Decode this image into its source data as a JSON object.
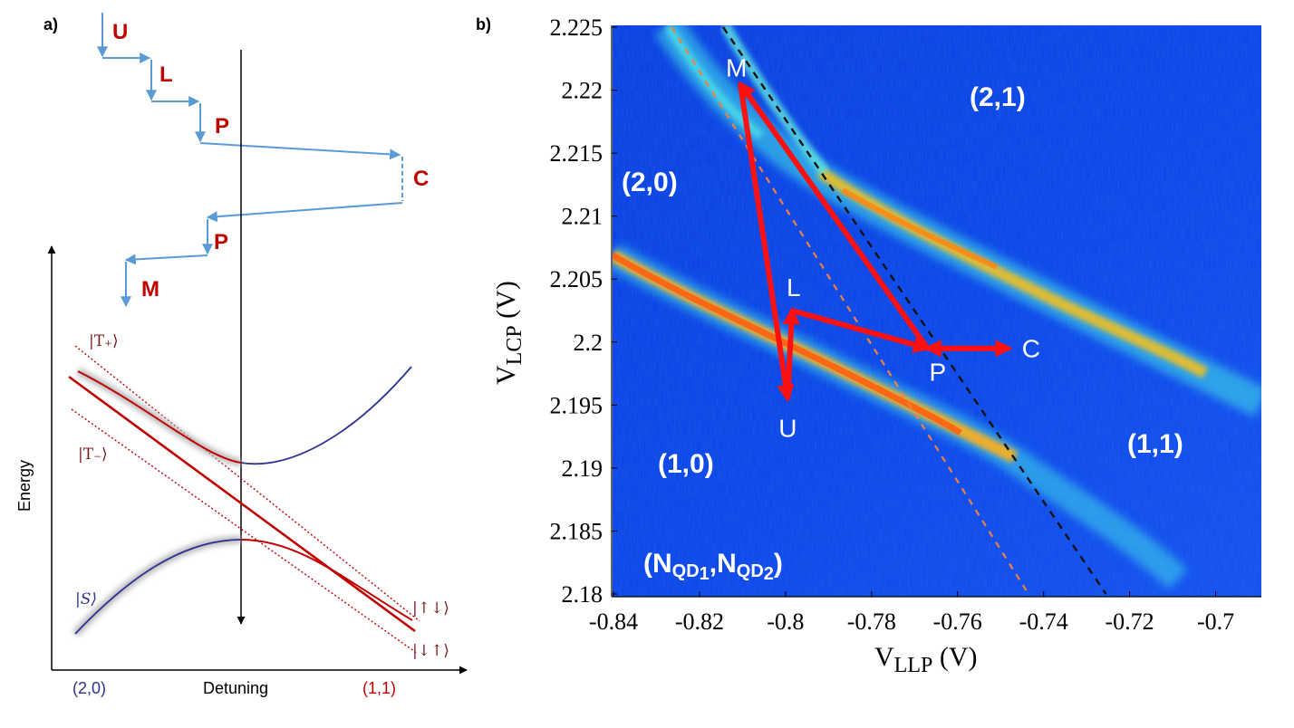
{
  "panel_a": {
    "label": "a)",
    "sequence": [
      "U",
      "L",
      "P",
      "C",
      "P",
      "M"
    ],
    "y_axis_label": "Energy",
    "x_axis_label": "Detuning",
    "x_left": "(2,0)",
    "x_right": "(1,1)",
    "states": {
      "t_plus": "|T₊⟩",
      "t_minus": "|T₋⟩",
      "singlet": "|S⟩",
      "up_down": "|↑↓⟩",
      "down_up": "|↓↑⟩"
    },
    "colors": {
      "sequence": "#5b9bd5",
      "labels": "#c00000",
      "triplet": "#c00000",
      "singlet": "#2e3192"
    }
  },
  "panel_b": {
    "label": "b)",
    "regions": {
      "r21": "(2,1)",
      "r20": "(2,0)",
      "r10": "(1,0)",
      "r11": "(1,1)"
    },
    "occupation": {
      "open": "(N",
      "qd": "QD",
      "sub1": "1",
      "comma": ",N",
      "sub2": "2",
      "close": ")"
    },
    "points": [
      {
        "name": "M",
        "x": -0.8105,
        "y": 2.2205
      },
      {
        "name": "L",
        "x": -0.7985,
        "y": 2.2025
      },
      {
        "name": "U",
        "x": -0.7995,
        "y": 2.1955
      },
      {
        "name": "P",
        "x": -0.767,
        "y": 2.1995
      },
      {
        "name": "C",
        "x": -0.748,
        "y": 2.1995
      }
    ],
    "chart_data": {
      "type": "heatmap",
      "xlabel": {
        "main": "V",
        "sub": "LLP",
        "unit": " (V)"
      },
      "ylabel": {
        "main": "V",
        "sub": "LCP",
        "unit": " (V)"
      },
      "xlim": [
        -0.84,
        -0.69
      ],
      "ylim": [
        2.18,
        2.225
      ],
      "x_ticks": [
        "-0.84",
        "-0.82",
        "-0.8",
        "-0.78",
        "-0.76",
        "-0.74",
        "-0.72",
        "-0.7"
      ],
      "y_ticks": [
        "2.18",
        "2.185",
        "2.19",
        "2.195",
        "2.2",
        "2.205",
        "2.21",
        "2.215",
        "2.22",
        "2.225"
      ],
      "x_tick_values": [
        -0.84,
        -0.82,
        -0.8,
        -0.78,
        -0.76,
        -0.74,
        -0.72,
        -0.7
      ],
      "y_tick_values": [
        2.18,
        2.185,
        2.19,
        2.195,
        2.2,
        2.205,
        2.21,
        2.215,
        2.22,
        2.225
      ],
      "black_dashed_line": [
        [
          -0.8145,
          2.225
        ],
        [
          -0.7255,
          2.18
        ]
      ],
      "orange_dashed_line": [
        [
          -0.8265,
          2.225
        ],
        [
          -0.7435,
          2.18
        ]
      ]
    }
  }
}
